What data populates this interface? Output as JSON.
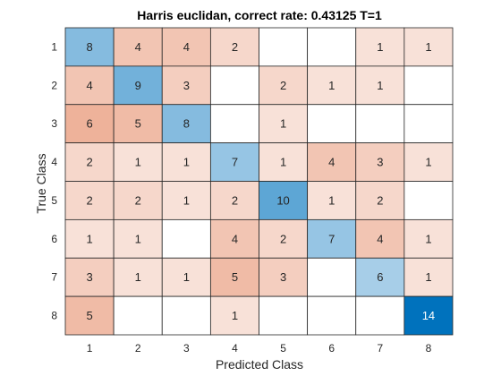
{
  "chart_data": {
    "type": "heatmap",
    "title": "Harris euclidan, correct rate: 0.43125 T=1",
    "xlabel": "Predicted Class",
    "ylabel": "True Class",
    "x_categories": [
      "1",
      "2",
      "3",
      "4",
      "5",
      "6",
      "7",
      "8"
    ],
    "y_categories": [
      "1",
      "2",
      "3",
      "4",
      "5",
      "6",
      "7",
      "8"
    ],
    "matrix": [
      [
        8,
        4,
        4,
        2,
        null,
        null,
        1,
        1
      ],
      [
        4,
        9,
        3,
        null,
        2,
        1,
        1,
        null
      ],
      [
        6,
        5,
        8,
        null,
        1,
        null,
        null,
        null
      ],
      [
        2,
        1,
        1,
        7,
        1,
        4,
        3,
        1
      ],
      [
        2,
        2,
        1,
        2,
        10,
        1,
        2,
        null
      ],
      [
        1,
        1,
        null,
        4,
        2,
        7,
        4,
        1
      ],
      [
        3,
        1,
        1,
        5,
        3,
        null,
        6,
        1
      ],
      [
        5,
        null,
        null,
        1,
        null,
        null,
        null,
        14
      ]
    ],
    "grid": true,
    "colors": {
      "diagonal_max": "#0072bd",
      "diagonal_min": "#ffffff",
      "off_diagonal_max": "#d9531e",
      "off_diagonal_min": "#ffffff",
      "gridline": "#262626",
      "text": "#262626"
    }
  }
}
